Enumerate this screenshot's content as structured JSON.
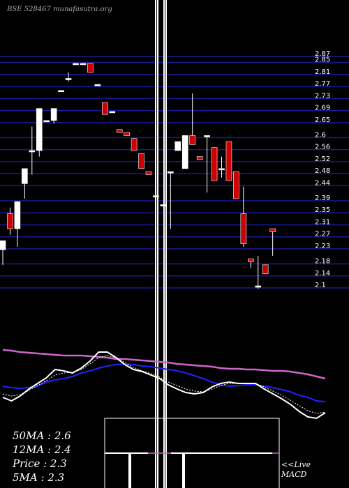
{
  "header": {
    "title": "BSE 528467 munafasutra.org"
  },
  "chart_data": {
    "type": "candlestick",
    "y_ticks": [
      2.87,
      2.85,
      2.81,
      2.77,
      2.73,
      2.69,
      2.65,
      2.6,
      2.56,
      2.52,
      2.48,
      2.44,
      2.39,
      2.35,
      2.31,
      2.27,
      2.23,
      2.18,
      2.14,
      2.1
    ],
    "ylim": [
      2.1,
      2.87
    ],
    "grid": true,
    "colors": {
      "up": "#ffffff",
      "down": "#cc0000",
      "grid": "#1a1a99",
      "ma_slow": "#cc66cc",
      "ma_mid": "#2222ff",
      "price_line": "#ffffff",
      "macd_signal": "#cc66cc"
    },
    "candles": [
      {
        "o": 2.22,
        "h": 2.25,
        "l": 2.17,
        "c": 2.25
      },
      {
        "o": 2.34,
        "h": 2.36,
        "l": 2.27,
        "c": 2.29
      },
      {
        "o": 2.29,
        "h": 2.38,
        "l": 2.23,
        "c": 2.38
      },
      {
        "o": 2.44,
        "h": 2.49,
        "l": 2.39,
        "c": 2.49
      },
      {
        "o": 2.55,
        "h": 2.63,
        "l": 2.47,
        "c": 2.55
      },
      {
        "o": 2.55,
        "h": 2.69,
        "l": 2.53,
        "c": 2.69
      },
      {
        "o": 2.65,
        "h": 2.65,
        "l": 2.65,
        "c": 2.65
      },
      {
        "o": 2.65,
        "h": 2.69,
        "l": 2.64,
        "c": 2.69
      },
      {
        "o": 2.75,
        "h": 2.75,
        "l": 2.75,
        "c": 2.75
      },
      {
        "o": 2.79,
        "h": 2.81,
        "l": 2.78,
        "c": 2.79
      },
      {
        "o": 2.84,
        "h": 2.84,
        "l": 2.84,
        "c": 2.84
      },
      {
        "o": 2.84,
        "h": 2.84,
        "l": 2.84,
        "c": 2.84
      },
      {
        "o": 2.84,
        "h": 2.84,
        "l": 2.81,
        "c": 2.81
      },
      {
        "o": 2.77,
        "h": 2.77,
        "l": 2.77,
        "c": 2.77
      },
      {
        "o": 2.71,
        "h": 2.71,
        "l": 2.67,
        "c": 2.67
      },
      {
        "o": 2.68,
        "h": 2.68,
        "l": 2.68,
        "c": 2.68
      },
      {
        "o": 2.62,
        "h": 2.62,
        "l": 2.61,
        "c": 2.61
      },
      {
        "o": 2.61,
        "h": 2.61,
        "l": 2.6,
        "c": 2.6
      },
      {
        "o": 2.59,
        "h": 2.59,
        "l": 2.55,
        "c": 2.55
      },
      {
        "o": 2.54,
        "h": 2.54,
        "l": 2.49,
        "c": 2.49
      },
      {
        "o": 2.48,
        "h": 2.48,
        "l": 2.47,
        "c": 2.47
      },
      {
        "o": 2.4,
        "h": 2.4,
        "l": 2.4,
        "c": 2.4
      },
      {
        "o": 2.37,
        "h": 2.37,
        "l": 2.37,
        "c": 2.37
      },
      {
        "o": 2.48,
        "h": 2.48,
        "l": 2.29,
        "c": 2.48
      },
      {
        "o": 2.55,
        "h": 2.58,
        "l": 2.55,
        "c": 2.58
      },
      {
        "o": 2.49,
        "h": 2.6,
        "l": 2.49,
        "c": 2.6
      },
      {
        "o": 2.6,
        "h": 2.74,
        "l": 2.57,
        "c": 2.57
      },
      {
        "o": 2.53,
        "h": 2.53,
        "l": 2.52,
        "c": 2.52
      },
      {
        "o": 2.6,
        "h": 2.6,
        "l": 2.41,
        "c": 2.6
      },
      {
        "o": 2.56,
        "h": 2.56,
        "l": 2.45,
        "c": 2.45
      },
      {
        "o": 2.49,
        "h": 2.53,
        "l": 2.46,
        "c": 2.49
      },
      {
        "o": 2.58,
        "h": 2.58,
        "l": 2.45,
        "c": 2.45
      },
      {
        "o": 2.48,
        "h": 2.48,
        "l": 2.39,
        "c": 2.39
      },
      {
        "o": 2.34,
        "h": 2.43,
        "l": 2.23,
        "c": 2.24
      },
      {
        "o": 2.19,
        "h": 2.19,
        "l": 2.16,
        "c": 2.18
      },
      {
        "o": 2.1,
        "h": 2.2,
        "l": 2.09,
        "c": 2.1
      },
      {
        "o": 2.17,
        "h": 2.17,
        "l": 2.14,
        "c": 2.14
      },
      {
        "o": 2.29,
        "h": 2.29,
        "l": 2.2,
        "c": 2.28
      }
    ],
    "indicator_lines": [
      {
        "name": "slow",
        "color": "#cc66cc",
        "values": [
          -0.2,
          -0.3,
          -0.5,
          -0.6,
          -0.7,
          -0.8,
          -0.9,
          -1.0,
          -1.0,
          -1.0,
          -1.1,
          -1.2,
          -1.3,
          -1.5,
          -1.5,
          -1.6,
          -1.7,
          -1.8,
          -1.9,
          -2.0,
          -2.2,
          -2.3,
          -2.4,
          -2.5,
          -2.6,
          -2.8,
          -2.9,
          -2.9,
          -3.0,
          -3.0,
          -3.1,
          -3.2,
          -3.2,
          -3.3,
          -3.5,
          -3.7,
          -4.0,
          -4.3
        ]
      },
      {
        "name": "mid",
        "color": "#2222ff",
        "values": [
          -5.4,
          -5.6,
          -5.7,
          -5.6,
          -5.4,
          -4.8,
          -4.5,
          -4.3,
          -4.0,
          -3.5,
          -3.2,
          -2.8,
          -2.5,
          -2.3,
          -2.2,
          -2.3,
          -2.5,
          -2.6,
          -2.8,
          -3.0,
          -3.2,
          -3.5,
          -3.9,
          -4.3,
          -4.8,
          -5.2,
          -5.4,
          -5.3,
          -5.2,
          -5.2,
          -5.4,
          -5.6,
          -5.9,
          -6.2,
          -6.7,
          -7.0,
          -7.5,
          -7.6
        ]
      },
      {
        "name": "price",
        "color": "#ffffff",
        "values": [
          -7.0,
          -7.5,
          -6.8,
          -5.8,
          -5.0,
          -4.2,
          -3.0,
          -3.2,
          -3.5,
          -2.8,
          -1.8,
          -0.5,
          -0.5,
          -1.3,
          -2.3,
          -3.0,
          -3.3,
          -3.8,
          -4.3,
          -5.2,
          -5.8,
          -6.3,
          -6.5,
          -6.3,
          -5.5,
          -5.0,
          -4.8,
          -5.0,
          -5.0,
          -5.0,
          -5.8,
          -6.5,
          -7.2,
          -8.0,
          -9.0,
          -9.8,
          -10.0,
          -9.2
        ]
      },
      {
        "name": "macd_fast",
        "color": "#ffffff",
        "dashed": true,
        "values": [
          -6.5,
          -6.8,
          -6.6,
          -6.0,
          -5.3,
          -4.6,
          -3.8,
          -3.5,
          -3.4,
          -3.0,
          -2.2,
          -1.3,
          -1.0,
          -1.3,
          -2.0,
          -2.7,
          -3.2,
          -3.6,
          -4.1,
          -4.8,
          -5.3,
          -5.8,
          -6.1,
          -6.2,
          -5.8,
          -5.3,
          -5.0,
          -5.0,
          -5.0,
          -5.0,
          -5.5,
          -6.1,
          -6.7,
          -7.4,
          -8.2,
          -8.9,
          -9.3,
          -9.1
        ]
      }
    ]
  },
  "stats": {
    "ma50": "50MA : 2.6",
    "ma12": "12MA : 2.4",
    "price": "Price   : 2.3",
    "ma5": "5MA : 2.3"
  },
  "macd_panel": {
    "label_live": "<<Live",
    "label_macd": "MACD"
  }
}
